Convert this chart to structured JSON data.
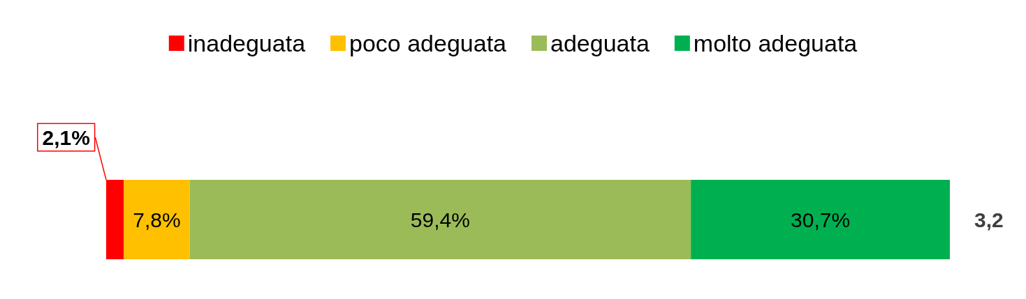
{
  "chart_data": {
    "type": "bar",
    "orientation": "horizontal",
    "stacked": true,
    "categories": [
      null
    ],
    "xlim": [
      0,
      100
    ],
    "legend": "top",
    "grid": false,
    "tick_labels": false,
    "series": [
      {
        "name": "inadeguata",
        "color": "#ff0000",
        "values": [
          2.1
        ],
        "value_labels": [
          "2,1%"
        ]
      },
      {
        "name": "poco adeguata",
        "color": "#ffc000",
        "values": [
          7.8
        ],
        "value_labels": [
          "7,8%"
        ]
      },
      {
        "name": "adeguata",
        "color": "#9bbb59",
        "values": [
          59.4
        ],
        "value_labels": [
          "59,4%"
        ]
      },
      {
        "name": "molto adeguata",
        "color": "#00b050",
        "values": [
          30.7
        ],
        "value_labels": [
          "30,7%"
        ]
      }
    ],
    "annotations": [
      "3,2"
    ]
  }
}
